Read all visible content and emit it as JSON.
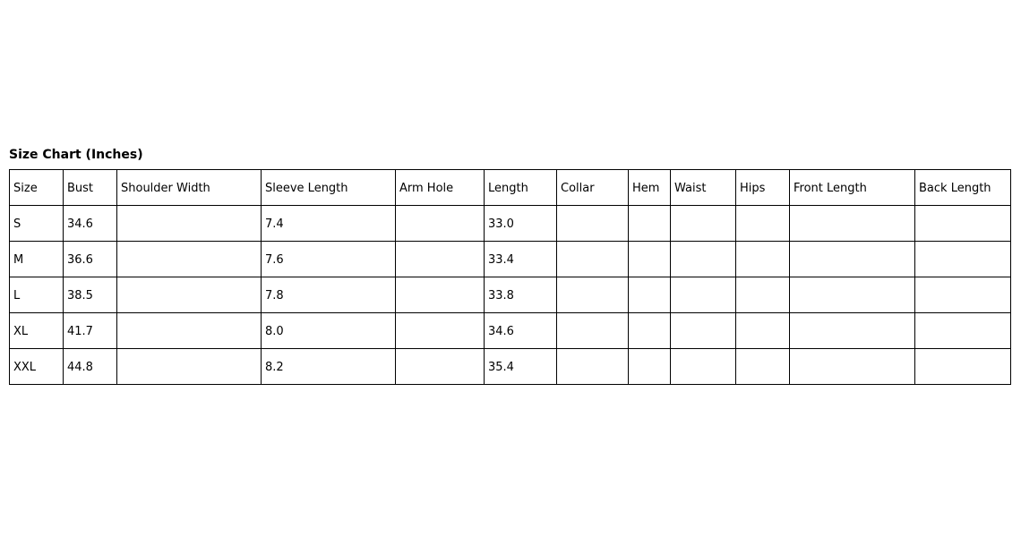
{
  "title": "Size Chart (Inches)",
  "colors": {
    "background": "#ffffff",
    "border": "#000000",
    "text": "#000000"
  },
  "chart_data": {
    "type": "table",
    "title": "Size Chart (Inches)",
    "unit": "Inches",
    "columns": [
      "Size",
      "Bust",
      "Shoulder Width",
      "Sleeve Length",
      "Arm Hole",
      "Length",
      "Collar",
      "Hem",
      "Waist",
      "Hips",
      "Front Length",
      "Back Length"
    ],
    "rows": [
      [
        "S",
        "34.6",
        "",
        "7.4",
        "",
        "33.0",
        "",
        "",
        "",
        "",
        "",
        ""
      ],
      [
        "M",
        "36.6",
        "",
        "7.6",
        "",
        "33.4",
        "",
        "",
        "",
        "",
        "",
        ""
      ],
      [
        "L",
        "38.5",
        "",
        "7.8",
        "",
        "33.8",
        "",
        "",
        "",
        "",
        "",
        ""
      ],
      [
        "XL",
        "41.7",
        "",
        "8.0",
        "",
        "34.6",
        "",
        "",
        "",
        "",
        "",
        ""
      ],
      [
        "XXL",
        "44.8",
        "",
        "8.2",
        "",
        "35.4",
        "",
        "",
        "",
        "",
        "",
        ""
      ]
    ]
  }
}
